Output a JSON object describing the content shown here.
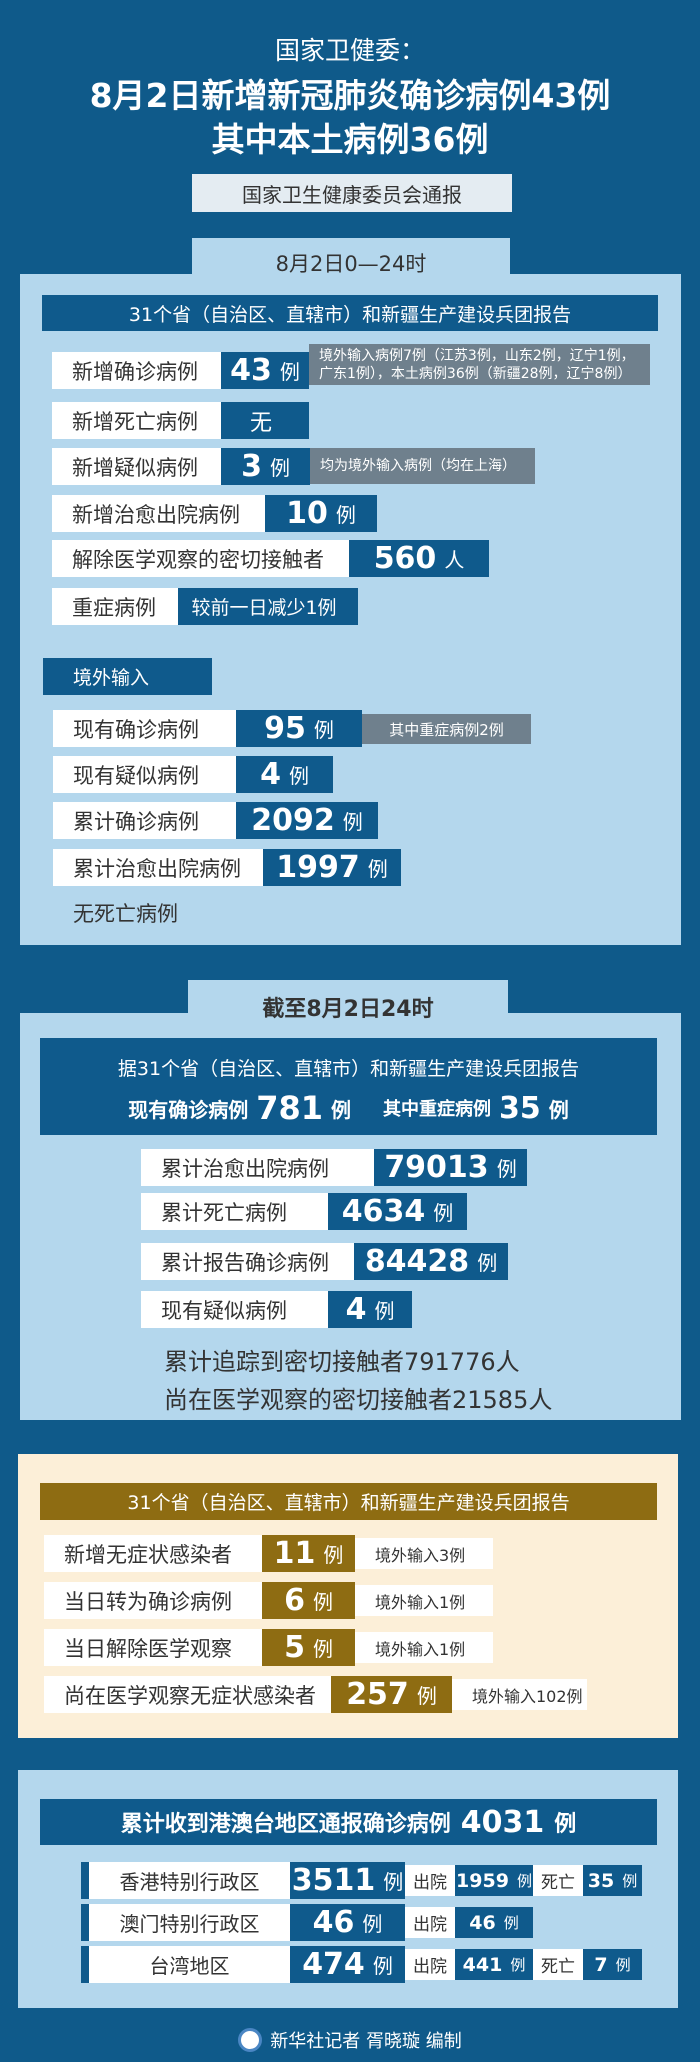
{
  "header": {
    "org": "国家卫健委：",
    "title1": "8月2日新增新冠肺炎确诊病例43例",
    "title2": "其中本土病例36例",
    "source": "国家卫生健康委员会通报"
  },
  "daily": {
    "tab": "8月2日0—24时",
    "bar": "31个省（自治区、直辖市）和新疆生产建设兵团报告",
    "rows": [
      {
        "label": "新增确诊病例",
        "value": "43",
        "unit": "例",
        "note": "境外输入病例7例（江苏3例，山东2例，辽宁1例，广东1例），本土病例36例（新疆28例，辽宁8例）"
      },
      {
        "label": "新增死亡病例",
        "value": "无"
      },
      {
        "label": "新增疑似病例",
        "value": "3",
        "unit": "例",
        "note": "均为境外输入病例（均在上海）"
      },
      {
        "label": "新增治愈出院病例",
        "value": "10",
        "unit": "例"
      },
      {
        "label": "解除医学观察的密切接触者",
        "value": "560",
        "unit": "人"
      },
      {
        "label": "重症病例",
        "value": "较前一日减少1例"
      }
    ],
    "imported": {
      "title": "境外输入",
      "rows": [
        {
          "label": "现有确诊病例",
          "value": "95",
          "unit": "例",
          "note": "其中重症病例2例"
        },
        {
          "label": "现有疑似病例",
          "value": "4",
          "unit": "例"
        },
        {
          "label": "累计确诊病例",
          "value": "2092",
          "unit": "例"
        },
        {
          "label": "累计治愈出院病例",
          "value": "1997",
          "unit": "例"
        }
      ],
      "footer": "无死亡病例"
    }
  },
  "cumulative": {
    "tab": "截至8月2日24时",
    "line1": "据31个省（自治区、直辖市）和新疆生产建设兵团报告",
    "current_label": "现有确诊病例",
    "current_value": "781",
    "severe_label": "其中重症病例",
    "severe_value": "35",
    "unit": "例",
    "rows": [
      {
        "label": "累计治愈出院病例",
        "value": "79013",
        "unit": "例"
      },
      {
        "label": "累计死亡病例",
        "value": "4634",
        "unit": "例"
      },
      {
        "label": "累计报告确诊病例",
        "value": "84428",
        "unit": "例"
      },
      {
        "label": "现有疑似病例",
        "value": "4",
        "unit": "例"
      }
    ],
    "text1": "累计追踪到密切接触者791776人",
    "text2": "尚在医学观察的密切接触者21585人"
  },
  "asymptomatic": {
    "bar": "31个省（自治区、直辖市）和新疆生产建设兵团报告",
    "rows": [
      {
        "label": "新增无症状感染者",
        "value": "11",
        "unit": "例",
        "note": "境外输入3例"
      },
      {
        "label": "当日转为确诊病例",
        "value": "6",
        "unit": "例",
        "note": "境外输入1例"
      },
      {
        "label": "当日解除医学观察",
        "value": "5",
        "unit": "例",
        "note": "境外输入1例"
      },
      {
        "label": "尚在医学观察无症状感染者",
        "value": "257",
        "unit": "例",
        "note": "境外输入102例"
      }
    ]
  },
  "hmt": {
    "title": "累计收到港澳台地区通报确诊病例",
    "total": "4031",
    "unit": "例",
    "discharged_label": "出院",
    "death_label": "死亡",
    "rows": [
      {
        "label": "香港特别行政区",
        "value": "3511",
        "discharged": "1959",
        "deaths": "35"
      },
      {
        "label": "澳门特别行政区",
        "value": "46",
        "discharged": "46"
      },
      {
        "label": "台湾地区",
        "value": "474",
        "discharged": "441",
        "deaths": "7"
      }
    ]
  },
  "credit": "新华社记者 胥晓璇 编制",
  "colors": {
    "dark_blue": "#0f5a8a",
    "light_blue": "#b4d7ed",
    "gold": "#8e6c12",
    "cream": "#fcefd8",
    "grey": "#6f808d"
  }
}
